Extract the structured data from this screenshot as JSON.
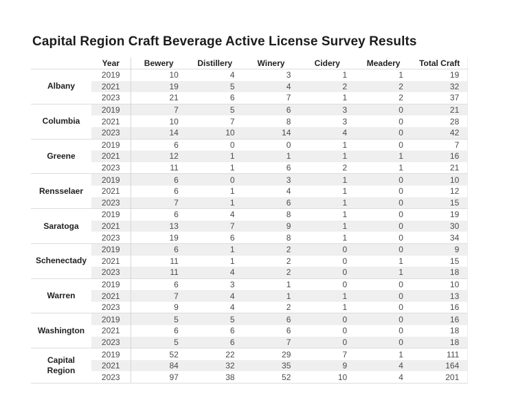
{
  "chart_data": {
    "type": "table",
    "title": "Capital Region Craft Beverage Active License Survey Results",
    "columns": [
      "Year",
      "Bewery",
      "Distillery",
      "Winery",
      "Cidery",
      "Meadery",
      "Total Craft"
    ],
    "row_groups": [
      {
        "label": "Albany",
        "rows": [
          [
            2019,
            10,
            4,
            3,
            1,
            1,
            19
          ],
          [
            2021,
            19,
            5,
            4,
            2,
            2,
            32
          ],
          [
            2023,
            21,
            6,
            7,
            1,
            2,
            37
          ]
        ]
      },
      {
        "label": "Columbia",
        "rows": [
          [
            2019,
            7,
            5,
            6,
            3,
            0,
            21
          ],
          [
            2021,
            10,
            7,
            8,
            3,
            0,
            28
          ],
          [
            2023,
            14,
            10,
            14,
            4,
            0,
            42
          ]
        ]
      },
      {
        "label": "Greene",
        "rows": [
          [
            2019,
            6,
            0,
            0,
            1,
            0,
            7
          ],
          [
            2021,
            12,
            1,
            1,
            1,
            1,
            16
          ],
          [
            2023,
            11,
            1,
            6,
            2,
            1,
            21
          ]
        ]
      },
      {
        "label": "Rensselaer",
        "rows": [
          [
            2019,
            6,
            0,
            3,
            1,
            0,
            10
          ],
          [
            2021,
            6,
            1,
            4,
            1,
            0,
            12
          ],
          [
            2023,
            7,
            1,
            6,
            1,
            0,
            15
          ]
        ]
      },
      {
        "label": "Saratoga",
        "rows": [
          [
            2019,
            6,
            4,
            8,
            1,
            0,
            19
          ],
          [
            2021,
            13,
            7,
            9,
            1,
            0,
            30
          ],
          [
            2023,
            19,
            6,
            8,
            1,
            0,
            34
          ]
        ]
      },
      {
        "label": "Schenectady",
        "rows": [
          [
            2019,
            6,
            1,
            2,
            0,
            0,
            9
          ],
          [
            2021,
            11,
            1,
            2,
            0,
            1,
            15
          ],
          [
            2023,
            11,
            4,
            2,
            0,
            1,
            18
          ]
        ]
      },
      {
        "label": "Warren",
        "rows": [
          [
            2019,
            6,
            3,
            1,
            0,
            0,
            10
          ],
          [
            2021,
            7,
            4,
            1,
            1,
            0,
            13
          ],
          [
            2023,
            9,
            4,
            2,
            1,
            0,
            16
          ]
        ]
      },
      {
        "label": "Washington",
        "rows": [
          [
            2019,
            5,
            5,
            6,
            0,
            0,
            16
          ],
          [
            2021,
            6,
            6,
            6,
            0,
            0,
            18
          ],
          [
            2023,
            5,
            6,
            7,
            0,
            0,
            18
          ]
        ]
      },
      {
        "label": "Capital Region",
        "rows": [
          [
            2019,
            52,
            22,
            29,
            7,
            1,
            111
          ],
          [
            2021,
            84,
            32,
            35,
            9,
            4,
            164
          ],
          [
            2023,
            97,
            38,
            52,
            10,
            4,
            201
          ]
        ]
      }
    ],
    "legend": "none",
    "grid": "light horizontal group dividers, vertical divider after Year column, alternating row banding"
  },
  "style": {
    "bg": "#ffffff",
    "stripe": "#efefef",
    "gridline": "#dcdcdc",
    "divider": "#d6d6d6",
    "rightedge": "#ececec",
    "titletext": "#1c1c1c",
    "headertext": "#1f1f1f",
    "bodytext": "#4a4a4a"
  }
}
